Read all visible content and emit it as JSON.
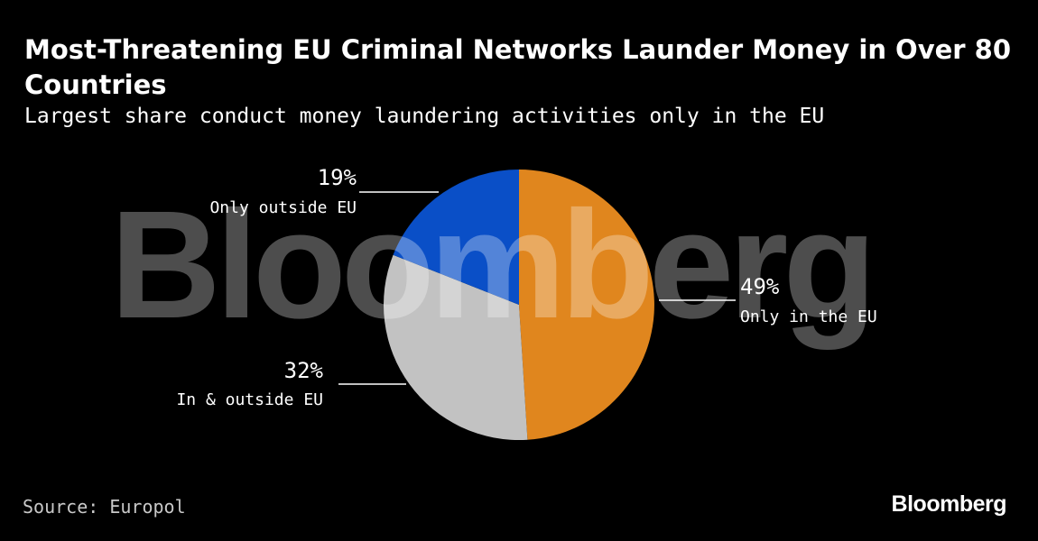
{
  "title": "Most-Threatening EU Criminal Networks Launder Money in Over 80 Countries",
  "subtitle": "Largest share conduct money laundering activities only in the EU",
  "source": "Source: Europol",
  "brand": "Bloomberg",
  "watermark": "Bloomberg",
  "chart_data": {
    "type": "pie",
    "title": "Most-Threatening EU Criminal Networks Launder Money in Over 80 Countries",
    "subtitle": "Largest share conduct money laundering activities only in the EU",
    "slices": [
      {
        "label": "Only in the EU",
        "value": 49,
        "value_label": "49%",
        "color": "#e0861e"
      },
      {
        "label": "In & outside EU",
        "value": 32,
        "value_label": "32%",
        "color": "#c2c2c2"
      },
      {
        "label": "Only outside EU",
        "value": 19,
        "value_label": "19%",
        "color": "#0a4fc7"
      }
    ]
  }
}
